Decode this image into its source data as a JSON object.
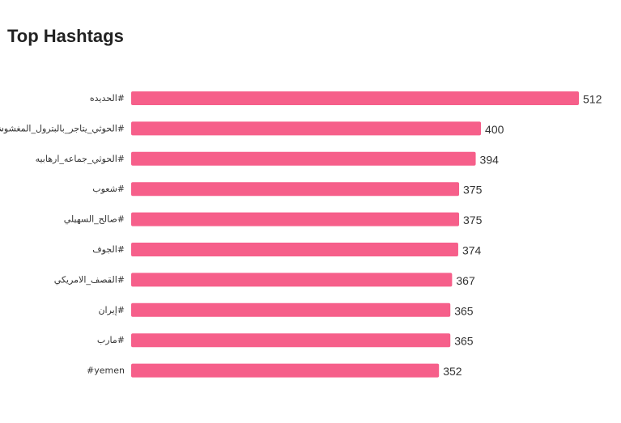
{
  "widget": {
    "title": "Top Hashtags"
  },
  "colors": {
    "bar": "#f65f8a",
    "text": "#333333",
    "title": "#222222",
    "background": "#ffffff"
  },
  "chart_data": {
    "type": "bar",
    "orientation": "horizontal",
    "title": "Top Hashtags",
    "xlabel": "",
    "ylabel": "",
    "grid": false,
    "legend": "none",
    "categories": [
      "#الحديده",
      "#الحوثي_يتاجر_بالبترول_المغشوش",
      "#الحوثي_جماعه_ارهابيه",
      "#شعوب",
      "#صالح_السهيلي",
      "#الجوف",
      "#القصف_الامريكي",
      "#إيران",
      "#مارب",
      "#yemen"
    ],
    "values": [
      512,
      400,
      394,
      375,
      375,
      374,
      367,
      365,
      365,
      352
    ],
    "xlim": [
      0,
      512
    ],
    "data_labels": true
  }
}
